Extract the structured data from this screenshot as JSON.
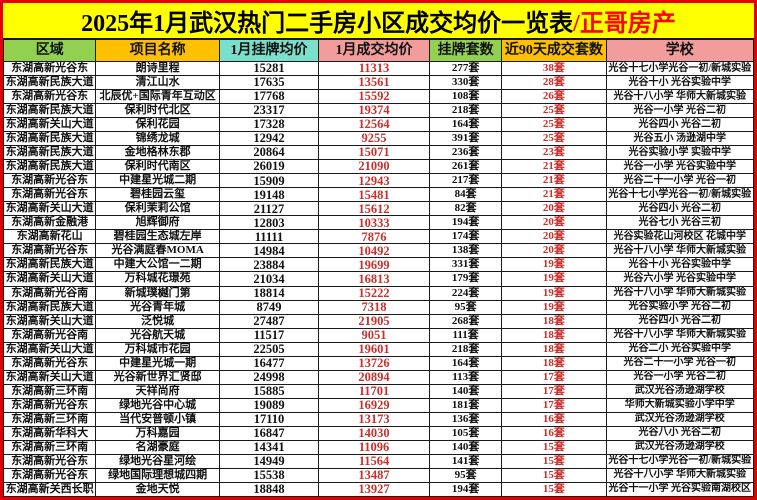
{
  "title": {
    "main": "2025年1月武汉热门二手房小区成交均价一览表",
    "brand": "/正哥房产"
  },
  "colors": {
    "outer_border_red": "#e30000",
    "title_bg_yellow": "#ffff00",
    "brand_red": "#fe0000",
    "header_green": "#92d050",
    "header_orange": "#ffc000",
    "header_teal": "#7ae0cc",
    "header_pink": "#f29c9c",
    "value_red": "#c9302c",
    "text_black": "#111111"
  },
  "table": {
    "columns": [
      {
        "label": "区域",
        "bg": "#92d050"
      },
      {
        "label": "项目名称",
        "bg": "#ffc000"
      },
      {
        "label": "1月挂牌均价",
        "bg": "#7ae0cc"
      },
      {
        "label": "1月成交均价",
        "bg": "#f29c9c"
      },
      {
        "label": "挂牌套数",
        "bg": "#92d050"
      },
      {
        "label": "近90天成交套数",
        "bg": "#ffc000"
      },
      {
        "label": "学校",
        "bg": "#f29c9c"
      }
    ],
    "rows": [
      [
        "东湖高新光谷东",
        "朗诗里程",
        "15281",
        "11313",
        "277套",
        "38套",
        "光谷十七小学光谷一初/新城实验"
      ],
      [
        "东湖高新民族大道",
        "清江山水",
        "17635",
        "13561",
        "330套",
        "28套",
        "光谷十小 光谷实验中学"
      ],
      [
        "东湖高新光谷东",
        "北辰优+国际青年互动区",
        "17768",
        "15592",
        "108套",
        "26套",
        "光谷十八小学 华师大新城实验"
      ],
      [
        "东湖高新民族大道",
        "保利时代北区",
        "23317",
        "19374",
        "218套",
        "25套",
        "光谷一小学 光谷二初"
      ],
      [
        "东湖高新关山大道",
        "保利花园",
        "17328",
        "12564",
        "164套",
        "25套",
        "光谷四小 光谷二初"
      ],
      [
        "东湖高新民族大道",
        "锦绣龙城",
        "12942",
        "9255",
        "391套",
        "25套",
        "光谷五小 汤逊湖中学"
      ],
      [
        "东湖高新民族大道",
        "金地格林东郡",
        "20864",
        "15071",
        "236套",
        "23套",
        "光谷实验小学 实验中学"
      ],
      [
        "东湖高新民族大道",
        "保利时代南区",
        "26019",
        "21090",
        "261套",
        "21套",
        "光谷一小学 光谷实验中学"
      ],
      [
        "东湖高新光谷东",
        "中建星光城二期",
        "15909",
        "12943",
        "217套",
        "21套",
        "光谷二十一小学 光谷一初"
      ],
      [
        "东湖高新光谷东",
        "碧桂园云玺",
        "19148",
        "15481",
        "84套",
        "21套",
        "光谷十七小学光谷一初/新城实验"
      ],
      [
        "东湖高新关山大道",
        "保利茉莉公馆",
        "21127",
        "15612",
        "82套",
        "20套",
        "光谷四小 光谷二初"
      ],
      [
        "东湖高新金融港",
        "旭辉御府",
        "12803",
        "10333",
        "194套",
        "20套",
        "光谷七小 光谷三初"
      ],
      [
        "东湖高新花山",
        "碧桂园生态城左岸",
        "11111",
        "7876",
        "174套",
        "20套",
        "光谷实验花山河校区 花城中学"
      ],
      [
        "东湖高新光谷东",
        "光谷满庭春MOMA",
        "14984",
        "10492",
        "138套",
        "20套",
        "光谷十八小学 华师大新城实验"
      ],
      [
        "东湖高新民族大道",
        "中建大公馆一二期",
        "23884",
        "19699",
        "331套",
        "19套",
        "光谷十小 光谷实验中学"
      ],
      [
        "东湖高新关山大道",
        "万科城花璟苑",
        "21034",
        "16813",
        "179套",
        "19套",
        "光谷六小学 光谷实验中学"
      ],
      [
        "东湖高新光谷南",
        "新城璞樾门第",
        "18814",
        "15222",
        "224套",
        "19套",
        "光谷十八小学 华师大新城实验"
      ],
      [
        "东湖高新民族大道",
        "光谷青年城",
        "8749",
        "7318",
        "95套",
        "19套",
        "光谷实验小学 光谷二初"
      ],
      [
        "东湖高新关山大道",
        "泛悦城",
        "27487",
        "21905",
        "268套",
        "18套",
        "光谷四小 光谷二初"
      ],
      [
        "东湖高新光谷南",
        "光谷航天城",
        "11517",
        "9051",
        "111套",
        "18套",
        "光谷十八小学 华师大新城实验"
      ],
      [
        "东湖高新关山大道",
        "万科城市花园",
        "22505",
        "19601",
        "218套",
        "18套",
        "光谷二小 光谷实验中学"
      ],
      [
        "东湖高新光谷东",
        "中建星光城一期",
        "16477",
        "13726",
        "164套",
        "18套",
        "光谷二十一小学 光谷一初"
      ],
      [
        "东湖高新关山大道",
        "光谷新世界汇贤邸",
        "24998",
        "20894",
        "113套",
        "17套",
        "光谷一小学 光谷二初"
      ],
      [
        "东湖高新三环南",
        "天祥尚府",
        "15885",
        "11701",
        "140套",
        "17套",
        "武汉光谷汤逊湖学校"
      ],
      [
        "东湖高新光谷东",
        "绿地光谷中心城",
        "19089",
        "16929",
        "181套",
        "17套",
        "华师大新城实验小学中学"
      ],
      [
        "东湖高新三环南",
        "当代安普顿小镇",
        "17110",
        "13173",
        "136套",
        "16套",
        "武汉光谷汤逊湖学校"
      ],
      [
        "东湖高新华科大",
        "万科嘉园",
        "16847",
        "14030",
        "105套",
        "16套",
        "光谷八小 光谷二初"
      ],
      [
        "东湖高新三环南",
        "名湖豪庭",
        "14341",
        "11096",
        "140套",
        "15套",
        "武汉光谷汤逊湖学校"
      ],
      [
        "东湖高新光谷东",
        "绿地光谷星河绘",
        "14949",
        "11564",
        "141套",
        "15套",
        "光谷十七小学光谷一初/新城实验"
      ],
      [
        "东湖高新光谷东",
        "绿地国际理想城四期",
        "15538",
        "13487",
        "95套",
        "15套",
        "光谷十八小学 华师大新城实验"
      ],
      [
        "东湖高新关西长职",
        "金地天悦",
        "18848",
        "13927",
        "194套",
        "15套",
        "光谷十一小学 光谷实验南湖校区"
      ]
    ]
  }
}
